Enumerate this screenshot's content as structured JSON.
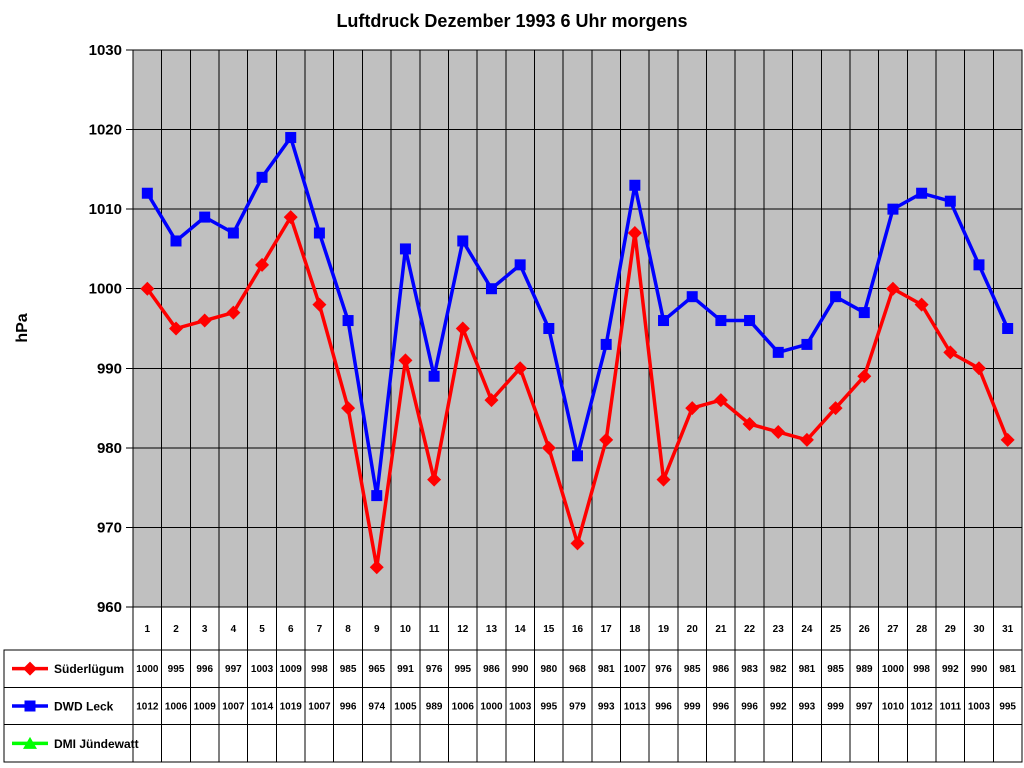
{
  "chart_data": {
    "type": "line",
    "title": "Luftdruck Dezember 1993 6 Uhr morgens",
    "ylabel": "hPa",
    "ylim": [
      960,
      1030
    ],
    "ytick_step": 10,
    "grid": true,
    "plot_bg_color": "#c0c0c0",
    "grid_color": "#000000",
    "legend_position": "bottom-data-table",
    "categories": [
      1,
      2,
      3,
      4,
      5,
      6,
      7,
      8,
      9,
      10,
      11,
      12,
      13,
      14,
      15,
      16,
      17,
      18,
      19,
      20,
      21,
      22,
      23,
      24,
      25,
      26,
      27,
      28,
      29,
      30,
      31
    ],
    "series": [
      {
        "name": "Süderlügum",
        "color": "#ff0000",
        "marker": "diamond",
        "values": [
          1000,
          995,
          996,
          997,
          1003,
          1009,
          998,
          985,
          965,
          991,
          976,
          995,
          986,
          990,
          980,
          968,
          981,
          1007,
          976,
          985,
          986,
          983,
          982,
          981,
          985,
          989,
          1000,
          998,
          992,
          990,
          981
        ]
      },
      {
        "name": "DWD Leck",
        "color": "#0000ff",
        "marker": "square",
        "values": [
          1012,
          1006,
          1009,
          1007,
          1014,
          1019,
          1007,
          996,
          974,
          1005,
          989,
          1006,
          1000,
          1003,
          995,
          979,
          993,
          1013,
          996,
          999,
          996,
          996,
          992,
          993,
          999,
          997,
          1010,
          1012,
          1011,
          1003,
          995
        ]
      },
      {
        "name": "DMI Jündewatt",
        "color": "#00ff00",
        "marker": "triangle",
        "values": []
      }
    ]
  }
}
